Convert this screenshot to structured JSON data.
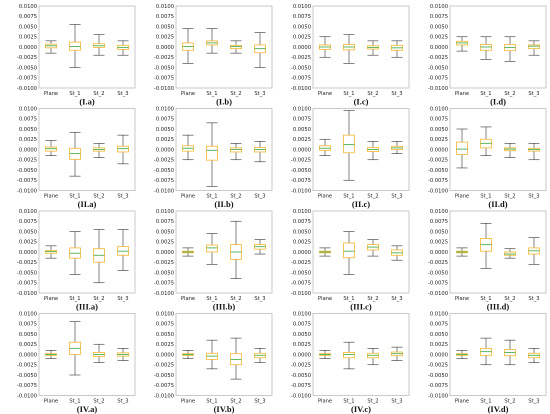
{
  "chart_data": [
    {
      "type": "box",
      "title": "(I.a)",
      "categories": [
        "Plane",
        "St_1",
        "St_2",
        "St_3"
      ],
      "ylim": [
        -0.01,
        0.01
      ],
      "boxes": [
        {
          "min": -0.0015,
          "q1": -0.0002,
          "median": 0.0003,
          "q3": 0.0007,
          "max": 0.0015
        },
        {
          "min": -0.005,
          "q1": -0.0008,
          "median": 0.0001,
          "q3": 0.0012,
          "max": 0.0055
        },
        {
          "min": -0.002,
          "q1": -0.0001,
          "median": 0.0003,
          "q3": 0.0008,
          "max": 0.003
        },
        {
          "min": -0.002,
          "q1": -0.0006,
          "median": -0.0001,
          "q3": 0.0004,
          "max": 0.0015
        }
      ]
    },
    {
      "type": "box",
      "title": "(I.b)",
      "categories": [
        "Plane",
        "St_1",
        "St_2",
        "St_3"
      ],
      "ylim": [
        -0.01,
        0.01
      ],
      "boxes": [
        {
          "min": -0.004,
          "q1": -0.0008,
          "median": 0.0001,
          "q3": 0.001,
          "max": 0.0045
        },
        {
          "min": -0.0015,
          "q1": 0.0005,
          "median": 0.001,
          "q3": 0.0015,
          "max": 0.0045
        },
        {
          "min": -0.0015,
          "q1": -0.0004,
          "median": 0.0001,
          "q3": 0.0004,
          "max": 0.0015
        },
        {
          "min": -0.005,
          "q1": -0.0014,
          "median": -0.0004,
          "q3": 0.0005,
          "max": 0.0035
        }
      ]
    },
    {
      "type": "box",
      "title": "(I.c)",
      "categories": [
        "Plane",
        "St_1",
        "St_2",
        "St_3"
      ],
      "ylim": [
        -0.01,
        0.01
      ],
      "boxes": [
        {
          "min": -0.0025,
          "q1": -0.0006,
          "median": 0.0,
          "q3": 0.0005,
          "max": 0.0025
        },
        {
          "min": -0.004,
          "q1": -0.0007,
          "median": 0.0,
          "q3": 0.0006,
          "max": 0.003
        },
        {
          "min": -0.002,
          "q1": -0.0005,
          "median": -0.0001,
          "q3": 0.0003,
          "max": 0.0015
        },
        {
          "min": -0.0025,
          "q1": -0.0008,
          "median": -0.0002,
          "q3": 0.0004,
          "max": 0.0015
        }
      ]
    },
    {
      "type": "box",
      "title": "(I.d)",
      "categories": [
        "Plane",
        "St_1",
        "St_2",
        "St_3"
      ],
      "ylim": [
        -0.01,
        0.01
      ],
      "boxes": [
        {
          "min": -0.001,
          "q1": 0.0005,
          "median": 0.001,
          "q3": 0.0014,
          "max": 0.0025
        },
        {
          "min": -0.003,
          "q1": -0.0008,
          "median": 0.0,
          "q3": 0.0006,
          "max": 0.0025
        },
        {
          "min": -0.0035,
          "q1": -0.0009,
          "median": -0.0001,
          "q3": 0.0006,
          "max": 0.0025
        },
        {
          "min": -0.002,
          "q1": -0.0004,
          "median": 0.0002,
          "q3": 0.0005,
          "max": 0.0015
        }
      ]
    },
    {
      "type": "box",
      "title": "(II.a)",
      "categories": [
        "Plane",
        "St_1",
        "St_2",
        "St_3"
      ],
      "ylim": [
        -0.01,
        0.01
      ],
      "boxes": [
        {
          "min": -0.0015,
          "q1": -0.0004,
          "median": 0.0002,
          "q3": 0.0006,
          "max": 0.0022
        },
        {
          "min": -0.0065,
          "q1": -0.0024,
          "median": -0.001,
          "q3": 0.0003,
          "max": 0.0042
        },
        {
          "min": -0.002,
          "q1": -0.0004,
          "median": 0.0,
          "q3": 0.0004,
          "max": 0.0015
        },
        {
          "min": -0.0035,
          "q1": -0.0006,
          "median": 0.0002,
          "q3": 0.0008,
          "max": 0.0035
        }
      ]
    },
    {
      "type": "box",
      "title": "(II.b)",
      "categories": [
        "Plane",
        "St_1",
        "St_2",
        "St_3"
      ],
      "ylim": [
        -0.01,
        0.01
      ],
      "boxes": [
        {
          "min": -0.0025,
          "q1": -0.0004,
          "median": 0.0003,
          "q3": 0.0009,
          "max": 0.0035
        },
        {
          "min": -0.009,
          "q1": -0.0026,
          "median": -0.0002,
          "q3": 0.0008,
          "max": 0.0065
        },
        {
          "min": -0.0025,
          "q1": -0.0006,
          "median": 0.0,
          "q3": 0.0004,
          "max": 0.0015
        },
        {
          "min": -0.003,
          "q1": -0.0006,
          "median": 0.0,
          "q3": 0.0005,
          "max": 0.002
        }
      ]
    },
    {
      "type": "box",
      "title": "(II.c)",
      "categories": [
        "Plane",
        "St_1",
        "St_2",
        "St_3"
      ],
      "ylim": [
        -0.01,
        0.01
      ],
      "boxes": [
        {
          "min": -0.0015,
          "q1": -0.0002,
          "median": 0.0003,
          "q3": 0.0009,
          "max": 0.0025
        },
        {
          "min": -0.0075,
          "q1": -0.0008,
          "median": 0.0012,
          "q3": 0.0035,
          "max": 0.0095
        },
        {
          "min": -0.0025,
          "q1": -0.0005,
          "median": 0.0,
          "q3": 0.0005,
          "max": 0.002
        },
        {
          "min": -0.001,
          "q1": 0.0,
          "median": 0.0004,
          "q3": 0.0008,
          "max": 0.002
        }
      ]
    },
    {
      "type": "box",
      "title": "(II.d)",
      "categories": [
        "Plane",
        "St_1",
        "St_2",
        "St_3"
      ],
      "ylim": [
        -0.01,
        0.01
      ],
      "boxes": [
        {
          "min": -0.0045,
          "q1": -0.0012,
          "median": 0.0001,
          "q3": 0.0018,
          "max": 0.005
        },
        {
          "min": -0.0015,
          "q1": 0.0004,
          "median": 0.0015,
          "q3": 0.0025,
          "max": 0.0055
        },
        {
          "min": -0.002,
          "q1": -0.0003,
          "median": 0.0001,
          "q3": 0.0004,
          "max": 0.0015
        },
        {
          "min": -0.0025,
          "q1": -0.0004,
          "median": 0.0,
          "q3": 0.0003,
          "max": 0.0015
        }
      ]
    },
    {
      "type": "box",
      "title": "(III.a)",
      "categories": [
        "Plane",
        "St_1",
        "St_2",
        "St_3"
      ],
      "ylim": [
        -0.01,
        0.01
      ],
      "boxes": [
        {
          "min": -0.0015,
          "q1": -0.0003,
          "median": 0.0001,
          "q3": 0.0004,
          "max": 0.0015
        },
        {
          "min": -0.0055,
          "q1": -0.0015,
          "median": -0.0003,
          "q3": 0.001,
          "max": 0.005
        },
        {
          "min": -0.0075,
          "q1": -0.0025,
          "median": -0.0008,
          "q3": 0.0008,
          "max": 0.0055
        },
        {
          "min": -0.0045,
          "q1": -0.0008,
          "median": 0.0002,
          "q3": 0.0013,
          "max": 0.0055
        }
      ]
    },
    {
      "type": "box",
      "title": "(III.b)",
      "categories": [
        "Plane",
        "St_1",
        "St_2",
        "St_3"
      ],
      "ylim": [
        -0.01,
        0.01
      ],
      "boxes": [
        {
          "min": -0.001,
          "q1": -0.0002,
          "median": 0.0,
          "q3": 0.0002,
          "max": 0.001
        },
        {
          "min": -0.003,
          "q1": 0.0,
          "median": 0.001,
          "q3": 0.0017,
          "max": 0.0045
        },
        {
          "min": -0.0065,
          "q1": -0.0018,
          "median": 0.0,
          "q3": 0.0018,
          "max": 0.0075
        },
        {
          "min": -0.0005,
          "q1": 0.0007,
          "median": 0.0013,
          "q3": 0.0018,
          "max": 0.003
        }
      ]
    },
    {
      "type": "box",
      "title": "(III.c)",
      "categories": [
        "Plane",
        "St_1",
        "St_2",
        "St_3"
      ],
      "ylim": [
        -0.01,
        0.01
      ],
      "boxes": [
        {
          "min": -0.001,
          "q1": -0.0002,
          "median": 0.0,
          "q3": 0.0002,
          "max": 0.001
        },
        {
          "min": -0.0055,
          "q1": -0.0014,
          "median": 0.0002,
          "q3": 0.0022,
          "max": 0.005
        },
        {
          "min": -0.001,
          "q1": 0.0005,
          "median": 0.0012,
          "q3": 0.0018,
          "max": 0.003
        },
        {
          "min": -0.002,
          "q1": -0.0008,
          "median": -0.0002,
          "q3": 0.0005,
          "max": 0.0015
        }
      ]
    },
    {
      "type": "box",
      "title": "(III.d)",
      "categories": [
        "Plane",
        "St_1",
        "St_2",
        "St_3"
      ],
      "ylim": [
        -0.01,
        0.01
      ],
      "boxes": [
        {
          "min": -0.001,
          "q1": -0.0002,
          "median": 0.0,
          "q3": 0.0002,
          "max": 0.001
        },
        {
          "min": -0.004,
          "q1": 0.0002,
          "median": 0.0018,
          "q3": 0.0033,
          "max": 0.007
        },
        {
          "min": -0.0015,
          "q1": -0.0008,
          "median": -0.0005,
          "q3": 0.0,
          "max": 0.0008
        },
        {
          "min": -0.003,
          "q1": -0.0005,
          "median": 0.0003,
          "q3": 0.001,
          "max": 0.0035
        }
      ]
    },
    {
      "type": "box",
      "title": "(IV.a)",
      "categories": [
        "Plane",
        "St_1",
        "St_2",
        "St_3"
      ],
      "ylim": [
        -0.01,
        0.01
      ],
      "boxes": [
        {
          "min": -0.001,
          "q1": -0.0002,
          "median": 0.0,
          "q3": 0.0002,
          "max": 0.001
        },
        {
          "min": -0.005,
          "q1": 0.0,
          "median": 0.0015,
          "q3": 0.003,
          "max": 0.008
        },
        {
          "min": -0.002,
          "q1": -0.0005,
          "median": 0.0,
          "q3": 0.0005,
          "max": 0.0025
        },
        {
          "min": -0.0015,
          "q1": -0.0004,
          "median": 0.0,
          "q3": 0.0004,
          "max": 0.0015
        }
      ]
    },
    {
      "type": "box",
      "title": "(IV.b)",
      "categories": [
        "Plane",
        "St_1",
        "St_2",
        "St_3"
      ],
      "ylim": [
        -0.01,
        0.01
      ],
      "boxes": [
        {
          "min": -0.001,
          "q1": -0.0002,
          "median": 0.0,
          "q3": 0.0002,
          "max": 0.001
        },
        {
          "min": -0.0035,
          "q1": -0.0012,
          "median": -0.0004,
          "q3": 0.0003,
          "max": 0.0035
        },
        {
          "min": -0.006,
          "q1": -0.0025,
          "median": -0.0012,
          "q3": 0.0002,
          "max": 0.004
        },
        {
          "min": -0.002,
          "q1": -0.0008,
          "median": -0.0002,
          "q3": 0.0003,
          "max": 0.0015
        }
      ]
    },
    {
      "type": "box",
      "title": "(IV.c)",
      "categories": [
        "Plane",
        "St_1",
        "St_2",
        "St_3"
      ],
      "ylim": [
        -0.01,
        0.01
      ],
      "boxes": [
        {
          "min": -0.001,
          "q1": -0.0002,
          "median": 0.0,
          "q3": 0.0002,
          "max": 0.001
        },
        {
          "min": -0.0035,
          "q1": -0.0008,
          "median": 0.0,
          "q3": 0.0005,
          "max": 0.003
        },
        {
          "min": -0.0025,
          "q1": -0.0008,
          "median": -0.0002,
          "q3": 0.0003,
          "max": 0.0015
        },
        {
          "min": -0.0015,
          "q1": -0.0003,
          "median": 0.0002,
          "q3": 0.0006,
          "max": 0.0018
        }
      ]
    },
    {
      "type": "box",
      "title": "(IV.d)",
      "categories": [
        "Plane",
        "St_1",
        "St_2",
        "St_3"
      ],
      "ylim": [
        -0.01,
        0.01
      ],
      "boxes": [
        {
          "min": -0.001,
          "q1": -0.0002,
          "median": 0.0,
          "q3": 0.0002,
          "max": 0.001
        },
        {
          "min": -0.0025,
          "q1": -0.0002,
          "median": 0.0007,
          "q3": 0.0015,
          "max": 0.004
        },
        {
          "min": -0.0025,
          "q1": -0.0003,
          "median": 0.0005,
          "q3": 0.0012,
          "max": 0.0035
        },
        {
          "min": -0.002,
          "q1": -0.0008,
          "median": -0.0002,
          "q3": 0.0003,
          "max": 0.0015
        }
      ]
    }
  ],
  "y_ticks": [
    "0.0100",
    "0.0075",
    "0.0050",
    "0.0025",
    "0.0000",
    "-0.0025",
    "-0.0050",
    "-0.0075",
    "-0.0100"
  ],
  "colors": {
    "box": "#f4b630",
    "median": "#4caf50",
    "whisker": "#333333",
    "frame": "#bdbdbd",
    "text": "#222222"
  }
}
